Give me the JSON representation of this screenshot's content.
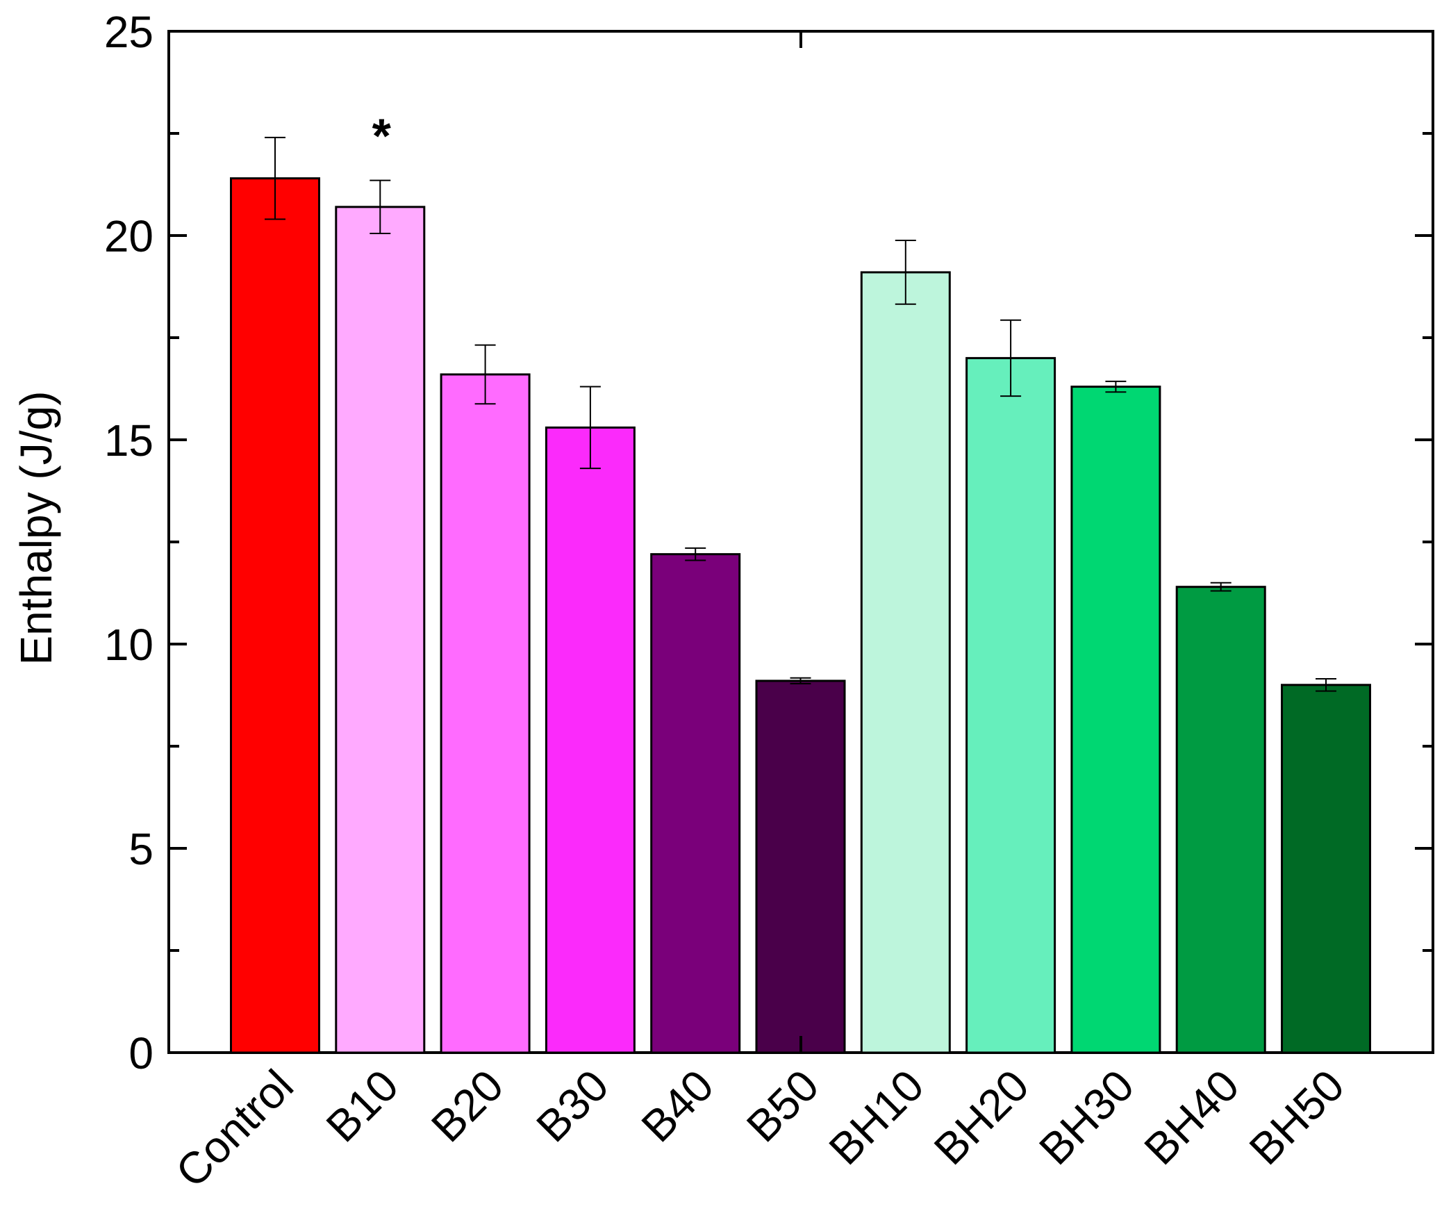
{
  "chart_data": {
    "type": "bar",
    "title": "",
    "xlabel": "",
    "ylabel": "Enthalpy (J/g)",
    "ylim": [
      0,
      25
    ],
    "yticks": [
      "0",
      "5",
      "10",
      "15",
      "20",
      "25"
    ],
    "categories": [
      "Control",
      "B10",
      "B20",
      "B30",
      "B40",
      "B50",
      "BH10",
      "BH20",
      "BH30",
      "BH40",
      "BH50"
    ],
    "values": [
      21.4,
      20.7,
      16.6,
      15.3,
      12.2,
      9.1,
      19.1,
      17.0,
      16.3,
      11.4,
      9.0
    ],
    "errors": [
      1.0,
      0.65,
      0.72,
      1.0,
      0.15,
      0.07,
      0.78,
      0.93,
      0.13,
      0.1,
      0.15
    ],
    "colors": [
      "#ff0000",
      "#ffaaff",
      "#ff6bff",
      "#fb2afb",
      "#7a007a",
      "#4a004a",
      "#bdf5dc",
      "#66efbc",
      "#00d772",
      "#009b42",
      "#006a25"
    ],
    "annotations": [
      {
        "category": "B10",
        "text": "*"
      }
    ],
    "grid": false,
    "legend": "none"
  }
}
